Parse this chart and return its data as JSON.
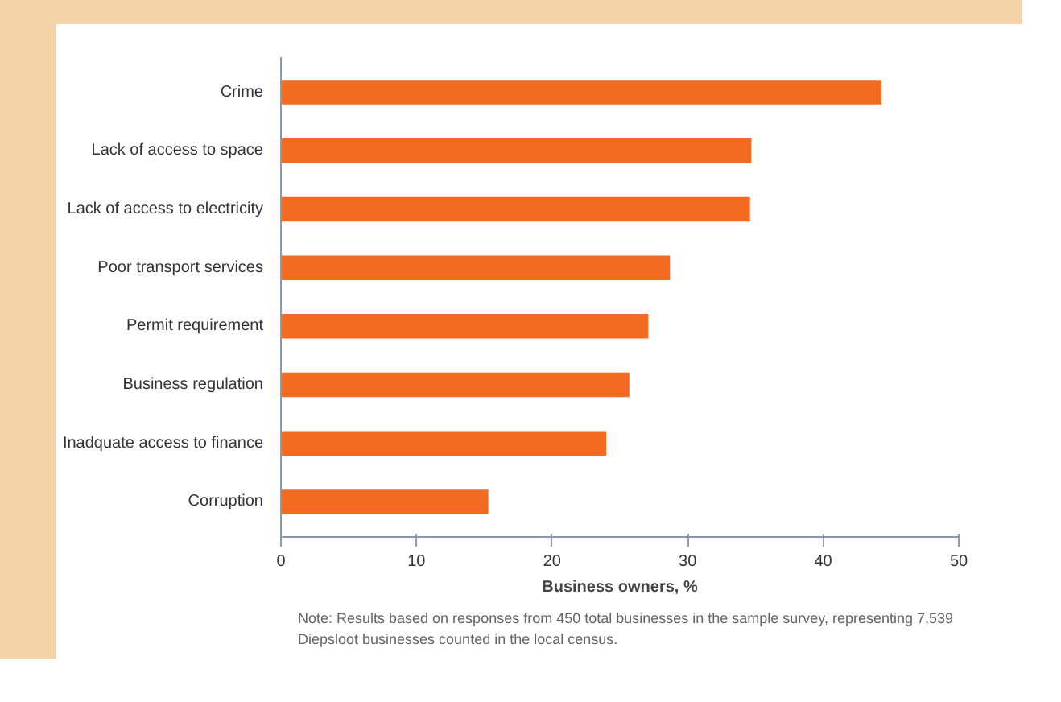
{
  "chart_data": {
    "type": "bar",
    "orientation": "horizontal",
    "categories": [
      "Crime",
      "Lack of access to space",
      "Lack of access to electricity",
      "Poor transport services",
      "Permit requirement",
      "Business regulation",
      "Inadquate access to finance",
      "Corruption"
    ],
    "values": [
      44.3,
      34.7,
      34.6,
      28.7,
      27.1,
      25.7,
      24.0,
      15.3
    ],
    "color": "#f26b21",
    "xlabel": "Business owners, %",
    "xlim": [
      0,
      50
    ],
    "xticks": [
      0,
      10,
      20,
      30,
      40,
      50
    ],
    "grid": false,
    "annotations": [
      "Note: Results based on responses from 450 total businesses in the sample survey, representing 7,539 Diepsloot businesses counted in the local census."
    ]
  }
}
